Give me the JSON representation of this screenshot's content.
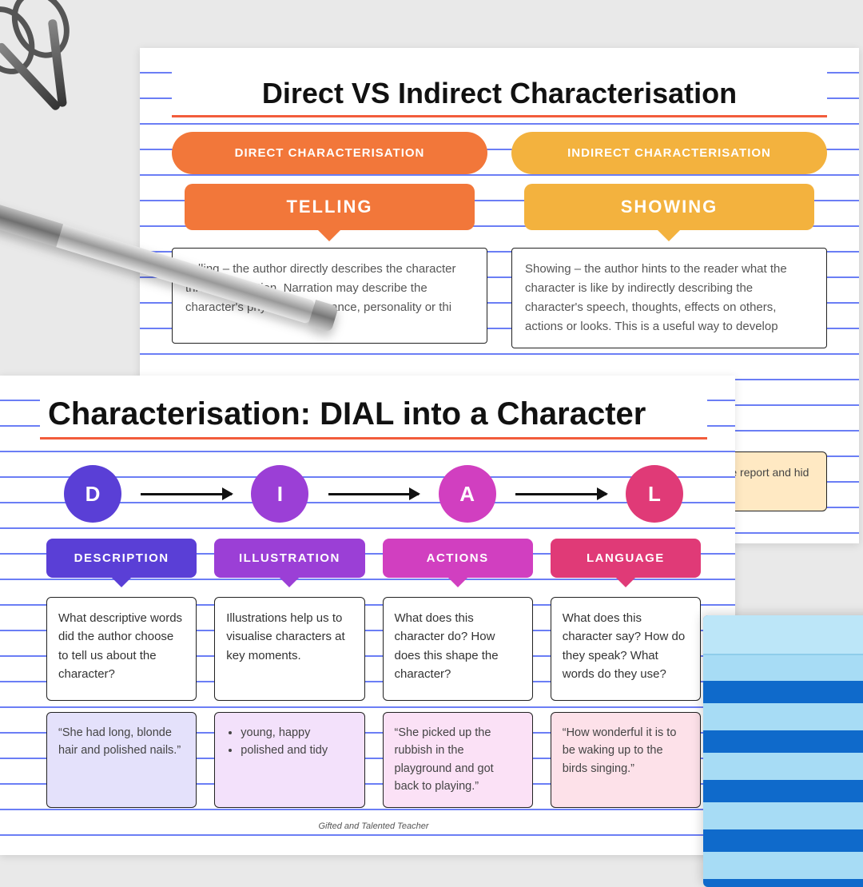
{
  "background_color": "#e9e9e9",
  "paper_line_color": "#6b7ef5",
  "rule_color": "#f25c3b",
  "back": {
    "title": "Direct VS Indirect Characterisation",
    "left": {
      "pill_label": "DIRECT CHARACTERISATION",
      "pill_color": "#f2773a",
      "tag_label": "TELLING",
      "tag_color": "#f2773a",
      "desc": "Telling – the author directly describes the character through narration. Narration may describe the character's physical appearance, personality or thi"
    },
    "right": {
      "pill_label": "INDIRECT CHARACTERISATION",
      "pill_color": "#f3b23e",
      "tag_label": "SHOWING",
      "tag_color": "#f3b23e",
      "desc": "Showing – the author hints to the reader what the character is like by indirectly describing the character's speech, thoughts, effects on others, actions or looks. This is a useful way to develop"
    },
    "peek_box_color": "#ffe9c3",
    "peek_text": "ed it down the report and hid the ng room."
  },
  "front": {
    "title": "Characterisation: DIAL into a Character",
    "footer": "Gifted and Talented Teacher",
    "colors": {
      "d": "#5a3fd6",
      "i": "#9b3fd6",
      "a": "#d13fc0",
      "l": "#e03a77"
    },
    "example_colors": {
      "d": "#e4e1fb",
      "i": "#f3e1fb",
      "a": "#fbe1f6",
      "l": "#fde1e9"
    },
    "circles": {
      "d": "D",
      "i": "I",
      "a": "A",
      "l": "L"
    },
    "labels": {
      "d": "DESCRIPTION",
      "i": "ILLUSTRATION",
      "a": "ACTIONS",
      "l": "LANGUAGE"
    },
    "questions": {
      "d": "What descriptive words did the author choose to tell us about the character?",
      "i": "Illustrations help us to visualise characters at key moments.",
      "a": "What does this character do? How does this shape the character?",
      "l": "What does this character say? How do they speak? What words do they use?"
    },
    "examples": {
      "d": "“She had long, blonde hair and polished nails.”",
      "i_items": [
        "young, happy",
        "polished and tidy"
      ],
      "a": "“She picked up the rubbish in the playground and got back to playing.”",
      "l": "“How wonderful it is to be waking up to the birds singing.”"
    }
  },
  "notepad": {
    "base_color": "#a7dcf5",
    "stripe_color": "#0f6acb"
  }
}
